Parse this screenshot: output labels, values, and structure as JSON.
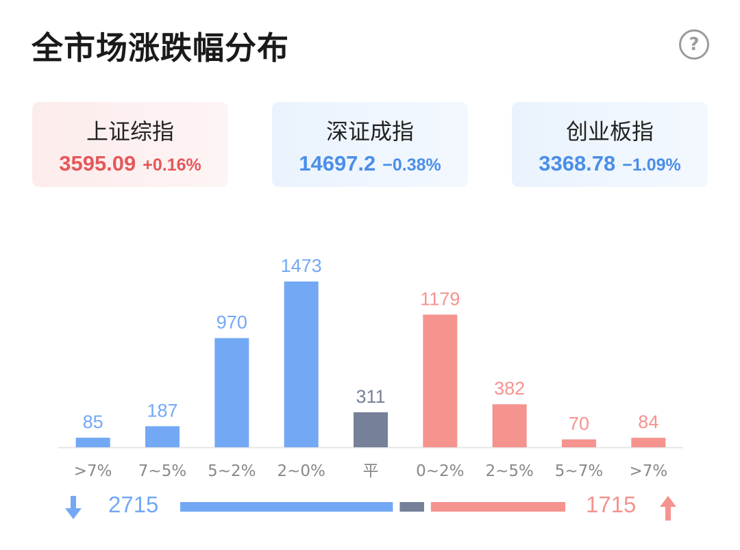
{
  "header": {
    "title": "全市场涨跌幅分布",
    "help_symbol": "?"
  },
  "indices": [
    {
      "name": "上证综指",
      "price": "3595.09",
      "change": "+0.16%",
      "trend": "up"
    },
    {
      "name": "深证成指",
      "price": "14697.2",
      "change": "−0.38%",
      "trend": "down"
    },
    {
      "name": "创业板指",
      "price": "3368.78",
      "change": "−1.09%",
      "trend": "down"
    }
  ],
  "colors": {
    "fall": "#73a8f5",
    "flat": "#768099",
    "rise": "#f5938f",
    "axis": "#e6e6e6",
    "tick": "#888888"
  },
  "chart_data": {
    "type": "bar",
    "categories": [
      ">7%",
      "7~5%",
      "5~2%",
      "2~0%",
      "平",
      "0~2%",
      "2~5%",
      "5~7%",
      ">7%"
    ],
    "values": [
      85,
      187,
      970,
      1473,
      311,
      1179,
      382,
      70,
      84
    ],
    "groups": [
      "fall",
      "fall",
      "fall",
      "fall",
      "flat",
      "rise",
      "rise",
      "rise",
      "rise"
    ],
    "ylim": [
      0,
      1473
    ],
    "grid": false
  },
  "summary": {
    "down_count": "2715",
    "up_count": "1715",
    "down_icon": "arrow-down-icon",
    "up_icon": "arrow-up-icon",
    "ratio": {
      "down": 2715,
      "flat": 311,
      "up": 1715
    }
  }
}
